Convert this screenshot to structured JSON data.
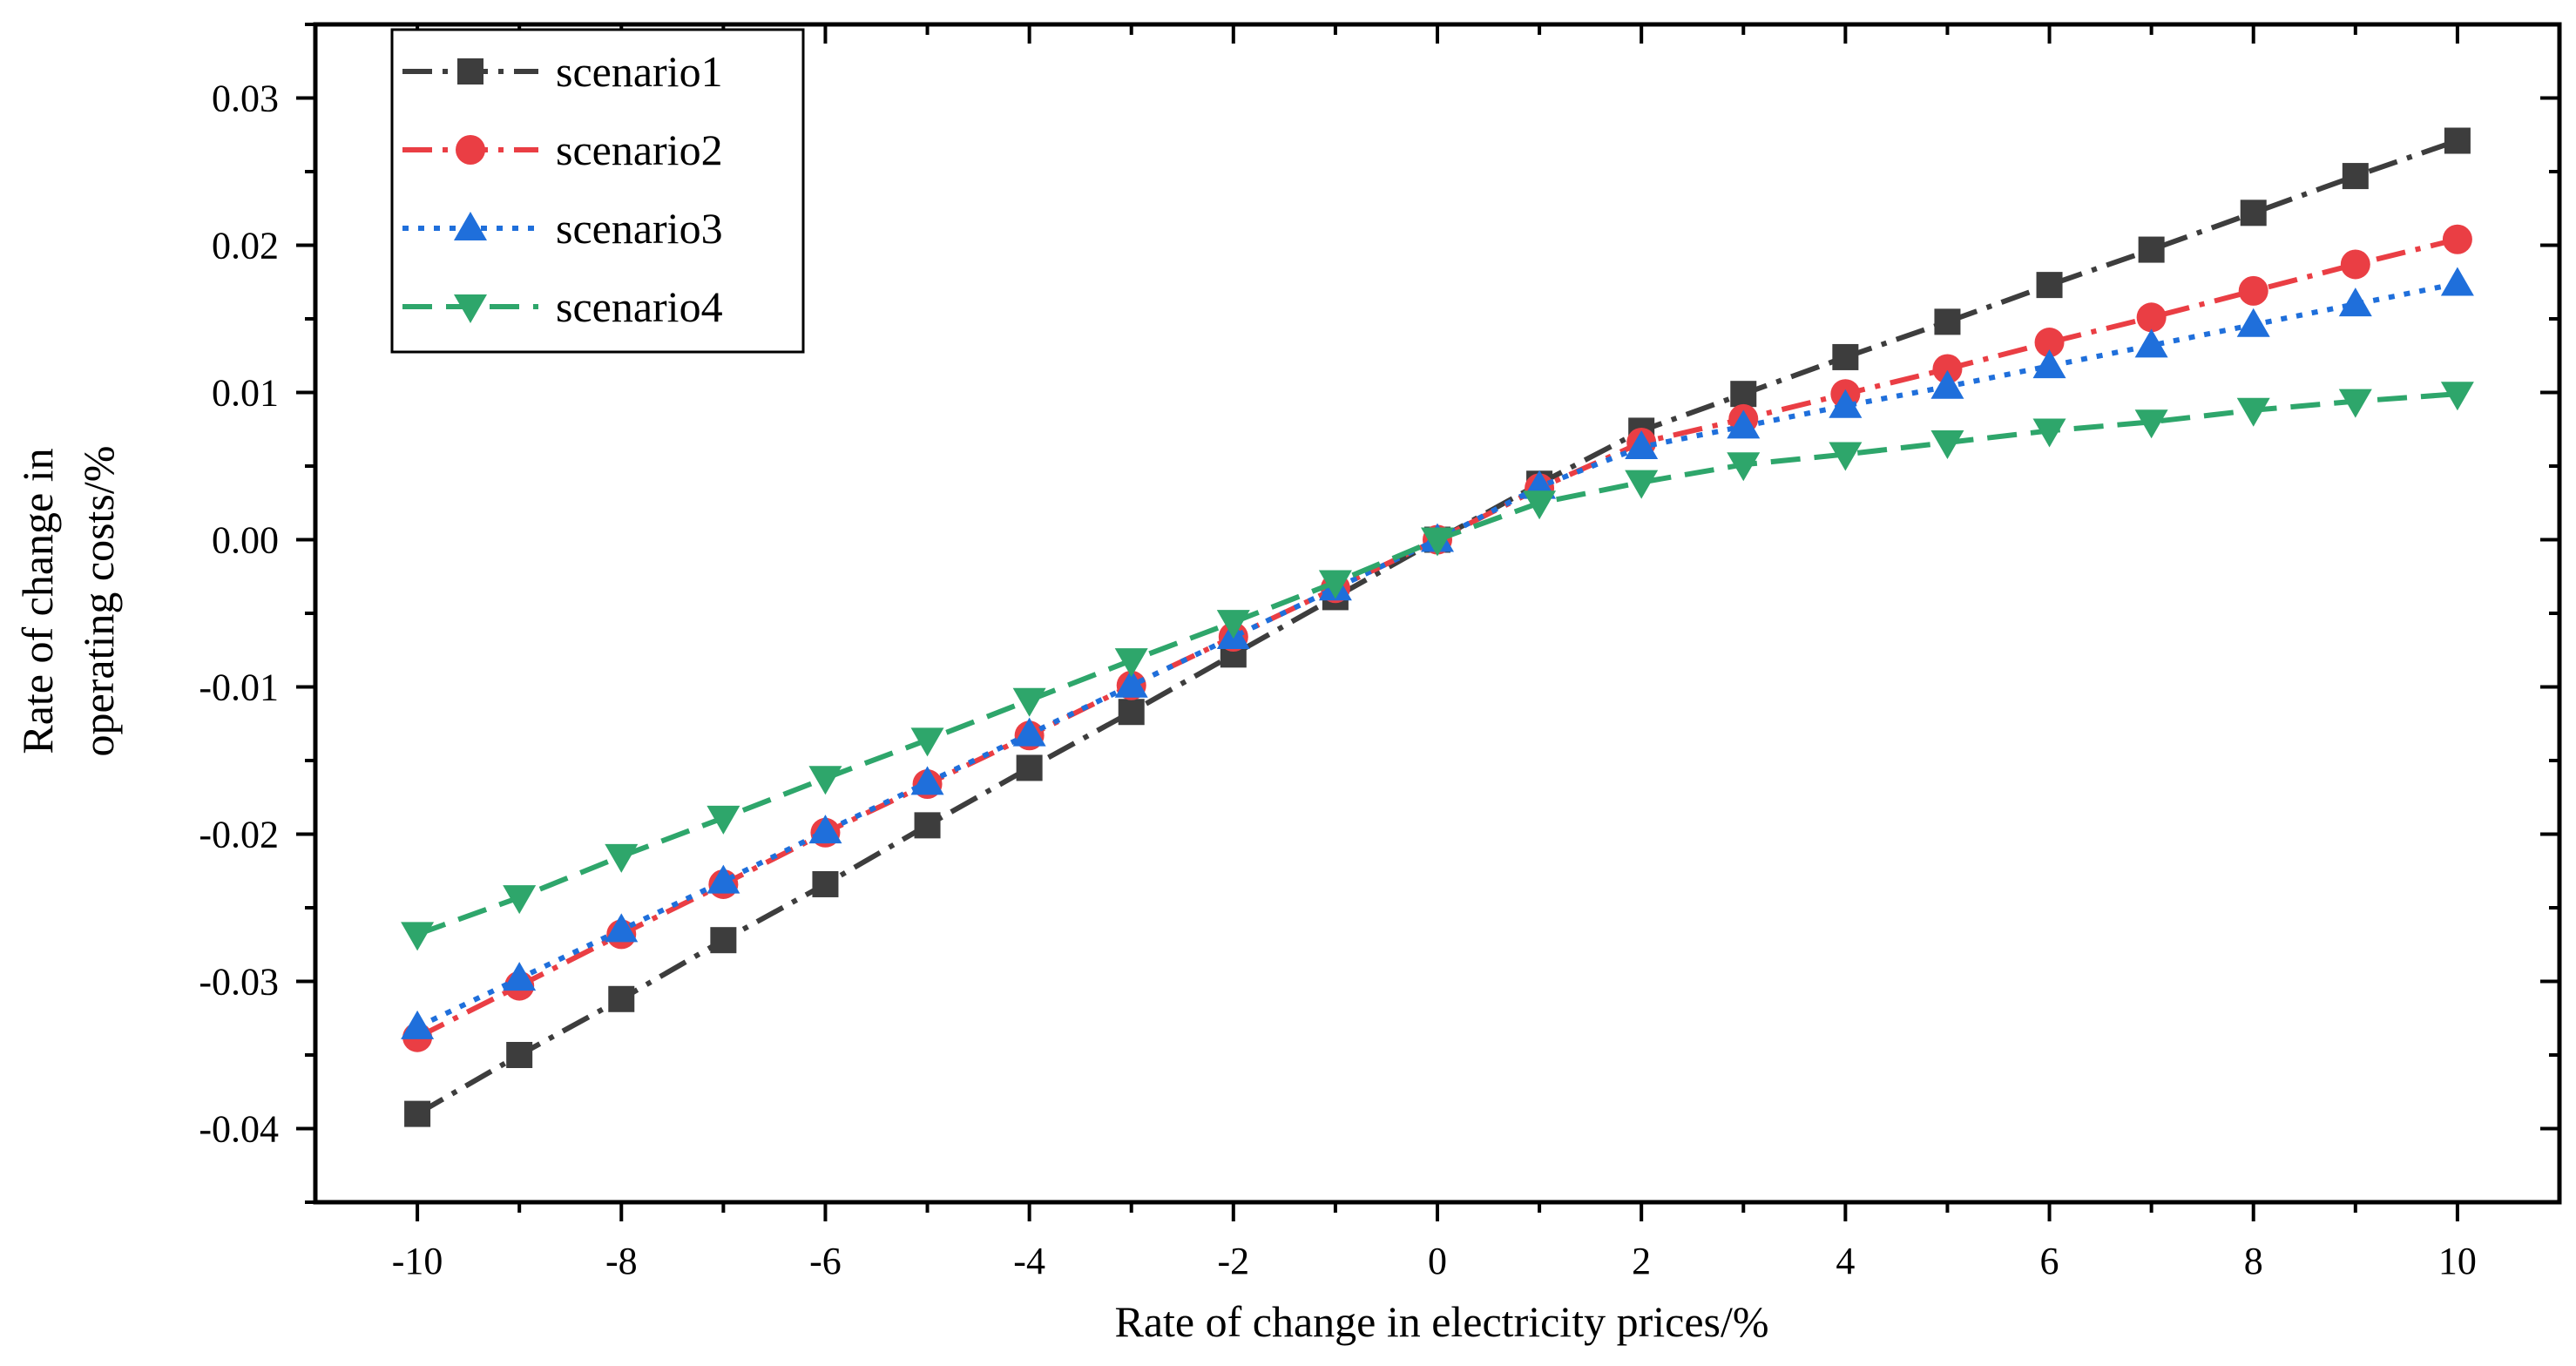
{
  "chart_data": {
    "type": "line",
    "title": "",
    "xlabel": "Rate of change in electricity prices/%",
    "ylabel_lines": [
      "Rate of change in",
      "operating costs/%"
    ],
    "xlim": [
      -11,
      11
    ],
    "ylim": [
      -0.045,
      0.035
    ],
    "x": [
      -10,
      -9,
      -8,
      -7,
      -6,
      -5,
      -4,
      -3,
      -2,
      -1,
      0,
      1,
      2,
      3,
      4,
      5,
      6,
      7,
      8,
      9,
      10
    ],
    "x_ticks": [
      -10,
      -8,
      -6,
      -4,
      -2,
      0,
      2,
      4,
      6,
      8,
      10
    ],
    "x_tick_labels": [
      "-10",
      "-8",
      "-6",
      "-4",
      "-2",
      "0",
      "2",
      "4",
      "6",
      "8",
      "10"
    ],
    "y_ticks": [
      -0.04,
      -0.03,
      -0.02,
      -0.01,
      0.0,
      0.01,
      0.02,
      0.03
    ],
    "y_tick_labels": [
      "-0.04",
      "-0.03",
      "-0.02",
      "-0.01",
      "0.00",
      "0.01",
      "0.02",
      "0.03"
    ],
    "grid": false,
    "legend_position": "top-left",
    "series": [
      {
        "name": "scenario1",
        "color": "#3d3d3d",
        "marker": "square",
        "dash": "dashdot",
        "values": [
          -0.039,
          -0.035,
          -0.0312,
          -0.0272,
          -0.0234,
          -0.0194,
          -0.0155,
          -0.0117,
          -0.0078,
          -0.0039,
          0.0,
          0.0038,
          0.0074,
          0.0099,
          0.0124,
          0.0148,
          0.0173,
          0.0197,
          0.0222,
          0.0247,
          0.0271
        ]
      },
      {
        "name": "scenario2",
        "color": "#ea3e44",
        "marker": "circle",
        "dash": "dashdot",
        "values": [
          -0.0338,
          -0.0303,
          -0.0268,
          -0.0234,
          -0.0199,
          -0.0166,
          -0.0133,
          -0.0099,
          -0.0066,
          -0.0033,
          0.0,
          0.0035,
          0.0066,
          0.0082,
          0.0099,
          0.0116,
          0.0134,
          0.0151,
          0.0169,
          0.0187,
          0.0204
        ]
      },
      {
        "name": "scenario3",
        "color": "#1f6fdb",
        "marker": "triangle-up",
        "dash": "dotted",
        "values": [
          -0.0331,
          -0.0298,
          -0.0265,
          -0.0232,
          -0.0198,
          -0.0165,
          -0.0132,
          -0.0099,
          -0.0066,
          -0.0033,
          0.0,
          0.0036,
          0.0063,
          0.0077,
          0.0091,
          0.0104,
          0.0118,
          0.0132,
          0.0146,
          0.016,
          0.0174
        ]
      },
      {
        "name": "scenario4",
        "color": "#2ea66b",
        "marker": "triangle-down",
        "dash": "dashed",
        "values": [
          -0.0268,
          -0.0243,
          -0.0215,
          -0.0189,
          -0.0162,
          -0.0136,
          -0.0109,
          -0.0082,
          -0.0056,
          -0.0029,
          0.0,
          0.0025,
          0.0039,
          0.0051,
          0.0058,
          0.0066,
          0.0074,
          0.008,
          0.0088,
          0.0094,
          0.0099
        ]
      }
    ]
  }
}
